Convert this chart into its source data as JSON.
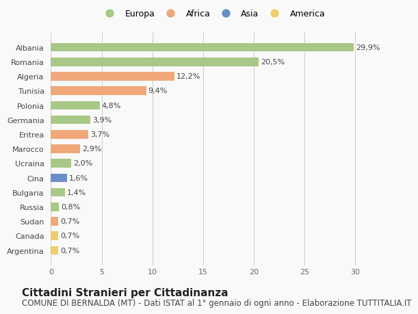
{
  "countries": [
    "Albania",
    "Romania",
    "Algeria",
    "Tunisia",
    "Polonia",
    "Germania",
    "Eritrea",
    "Marocco",
    "Ucraina",
    "Cina",
    "Bulgaria",
    "Russia",
    "Sudan",
    "Canada",
    "Argentina"
  ],
  "values": [
    29.9,
    20.5,
    12.2,
    9.4,
    4.8,
    3.9,
    3.7,
    2.9,
    2.0,
    1.6,
    1.4,
    0.8,
    0.7,
    0.7,
    0.7
  ],
  "labels": [
    "29,9%",
    "20,5%",
    "12,2%",
    "9,4%",
    "4,8%",
    "3,9%",
    "3,7%",
    "2,9%",
    "2,0%",
    "1,6%",
    "1,4%",
    "0,8%",
    "0,7%",
    "0,7%",
    "0,7%"
  ],
  "continents": [
    "Europa",
    "Europa",
    "Africa",
    "Africa",
    "Europa",
    "Europa",
    "Africa",
    "Africa",
    "Europa",
    "Asia",
    "Europa",
    "Europa",
    "Africa",
    "America",
    "America"
  ],
  "colors": {
    "Europa": "#a8c887",
    "Africa": "#f0a87a",
    "Asia": "#6a8fc8",
    "America": "#f0cc6a"
  },
  "legend_order": [
    "Europa",
    "Africa",
    "Asia",
    "America"
  ],
  "xlim": [
    0,
    32
  ],
  "xticks": [
    0,
    5,
    10,
    15,
    20,
    25,
    30
  ],
  "title": "Cittadini Stranieri per Cittadinanza",
  "subtitle": "COMUNE DI BERNALDA (MT) - Dati ISTAT al 1° gennaio di ogni anno - Elaborazione TUTTITALIA.IT",
  "background_color": "#f9f9f9",
  "bar_height": 0.6,
  "title_fontsize": 11,
  "subtitle_fontsize": 8.5,
  "label_fontsize": 8,
  "tick_fontsize": 8,
  "legend_fontsize": 9
}
